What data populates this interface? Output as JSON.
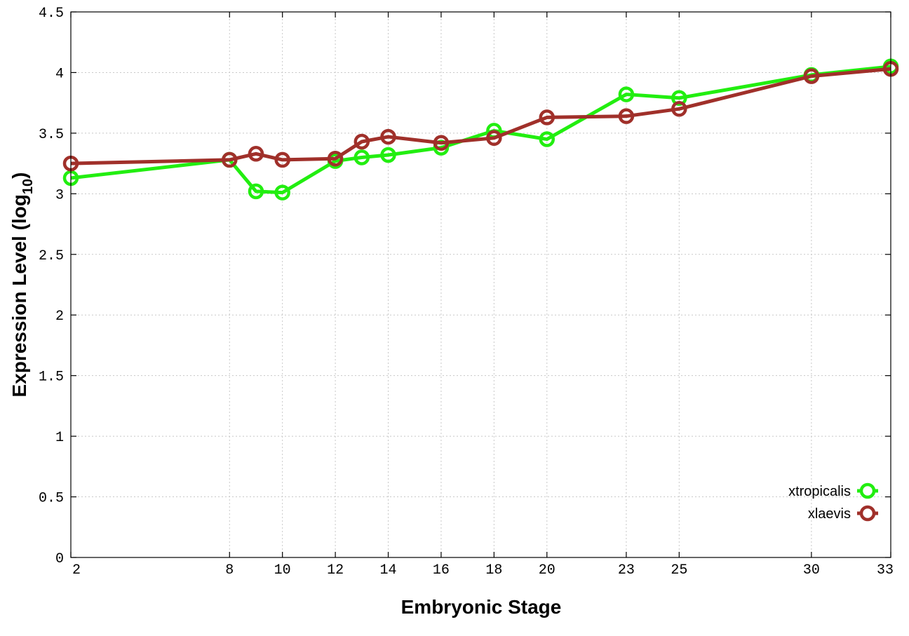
{
  "chart_data": {
    "type": "line",
    "xlabel": "Embryonic Stage",
    "ylabel_main": "Expression Level (log",
    "ylabel_sub": "10",
    "ylabel_close": ")",
    "xlim": [
      2,
      33
    ],
    "ylim": [
      0,
      4.5
    ],
    "x_ticks": [
      2,
      8,
      10,
      12,
      14,
      16,
      18,
      20,
      23,
      25,
      30,
      33
    ],
    "x_tick_labels": [
      "2",
      "8",
      "10",
      "12",
      "14",
      "16",
      "18",
      "20",
      "23",
      "25",
      "30",
      "33"
    ],
    "y_ticks": [
      0,
      0.5,
      1,
      1.5,
      2,
      2.5,
      3,
      3.5,
      4,
      4.5
    ],
    "y_tick_labels": [
      "0",
      "0.5",
      "1",
      "1.5",
      "2",
      "2.5",
      "3",
      "3.5",
      "4",
      "4.5"
    ],
    "grid": true,
    "legend_position": "bottom-right",
    "series": [
      {
        "name": "xtropicalis",
        "color": "#22ee10",
        "x": [
          2,
          8,
          9,
          10,
          12,
          13,
          14,
          16,
          18,
          20,
          23,
          25,
          30,
          33
        ],
        "y": [
          3.13,
          3.28,
          3.02,
          3.01,
          3.27,
          3.3,
          3.32,
          3.38,
          3.52,
          3.45,
          3.82,
          3.79,
          3.98,
          4.05
        ]
      },
      {
        "name": "xlaevis",
        "color": "#a0302a",
        "x": [
          2,
          8,
          9,
          10,
          12,
          13,
          14,
          16,
          18,
          20,
          23,
          25,
          30,
          33
        ],
        "y": [
          3.25,
          3.28,
          3.33,
          3.28,
          3.29,
          3.43,
          3.47,
          3.42,
          3.46,
          3.63,
          3.64,
          3.7,
          3.97,
          4.03
        ]
      }
    ]
  }
}
